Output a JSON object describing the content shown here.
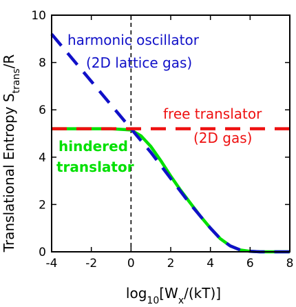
{
  "chart_data": {
    "type": "line",
    "title": "",
    "xlabel": "log₁₀[Wₓ/(kT)]",
    "ylabel": "Translational Entropy S_trans/R",
    "xlim": [
      -4,
      8
    ],
    "ylim": [
      0,
      10
    ],
    "x_ticks": [
      "-4",
      "-2",
      "0",
      "2",
      "4",
      "6",
      "8"
    ],
    "y_ticks": [
      "0",
      "2",
      "4",
      "6",
      "8",
      "10"
    ],
    "grid": false,
    "reference_line": {
      "x": 0,
      "style": "dashed",
      "color": "#000000"
    },
    "series": [
      {
        "name": "hindered translator",
        "style": "solid",
        "color": "#00e000",
        "x": [
          -4,
          -3,
          -2,
          -1,
          0,
          0.5,
          1,
          1.5,
          2,
          2.5,
          3,
          3.5,
          4,
          4.5,
          5,
          5.5,
          6,
          6.5,
          7,
          7.5,
          8
        ],
        "y": [
          5.2,
          5.2,
          5.2,
          5.2,
          5.15,
          4.9,
          4.45,
          3.85,
          3.2,
          2.6,
          2.05,
          1.5,
          1.0,
          0.55,
          0.25,
          0.08,
          0.02,
          0.0,
          0.0,
          0.0,
          0.0
        ]
      },
      {
        "name": "harmonic oscillator",
        "style": "dashed",
        "color": "#1010c8",
        "x": [
          -4,
          -3,
          -2,
          -1,
          0,
          0.5,
          1,
          1.5,
          2,
          2.5,
          3,
          3.5,
          4,
          4.5,
          5,
          5.5,
          6,
          6.5,
          7,
          7.5,
          8
        ],
        "y": [
          9.2,
          8.2,
          7.2,
          6.2,
          5.2,
          4.7,
          4.2,
          3.65,
          3.1,
          2.55,
          2.0,
          1.5,
          1.0,
          0.55,
          0.25,
          0.08,
          0.02,
          0.0,
          0.0,
          0.0,
          0.0
        ]
      },
      {
        "name": "free translator",
        "style": "dashed",
        "color": "#ee1010",
        "x": [
          -4,
          8
        ],
        "y": [
          5.2,
          5.2
        ]
      }
    ],
    "annotations": [
      {
        "key": "ho1",
        "text": "harmonic oscillator",
        "color": "#1010c8"
      },
      {
        "key": "ho2",
        "text": "(2D lattice gas)",
        "color": "#1010c8"
      },
      {
        "key": "ft1",
        "text": "free translator",
        "color": "#ee1010"
      },
      {
        "key": "ft2",
        "text": "(2D gas)",
        "color": "#ee1010"
      },
      {
        "key": "ht1",
        "text": "hindered",
        "color": "#00e000"
      },
      {
        "key": "ht2",
        "text": "translator",
        "color": "#00e000"
      }
    ]
  }
}
